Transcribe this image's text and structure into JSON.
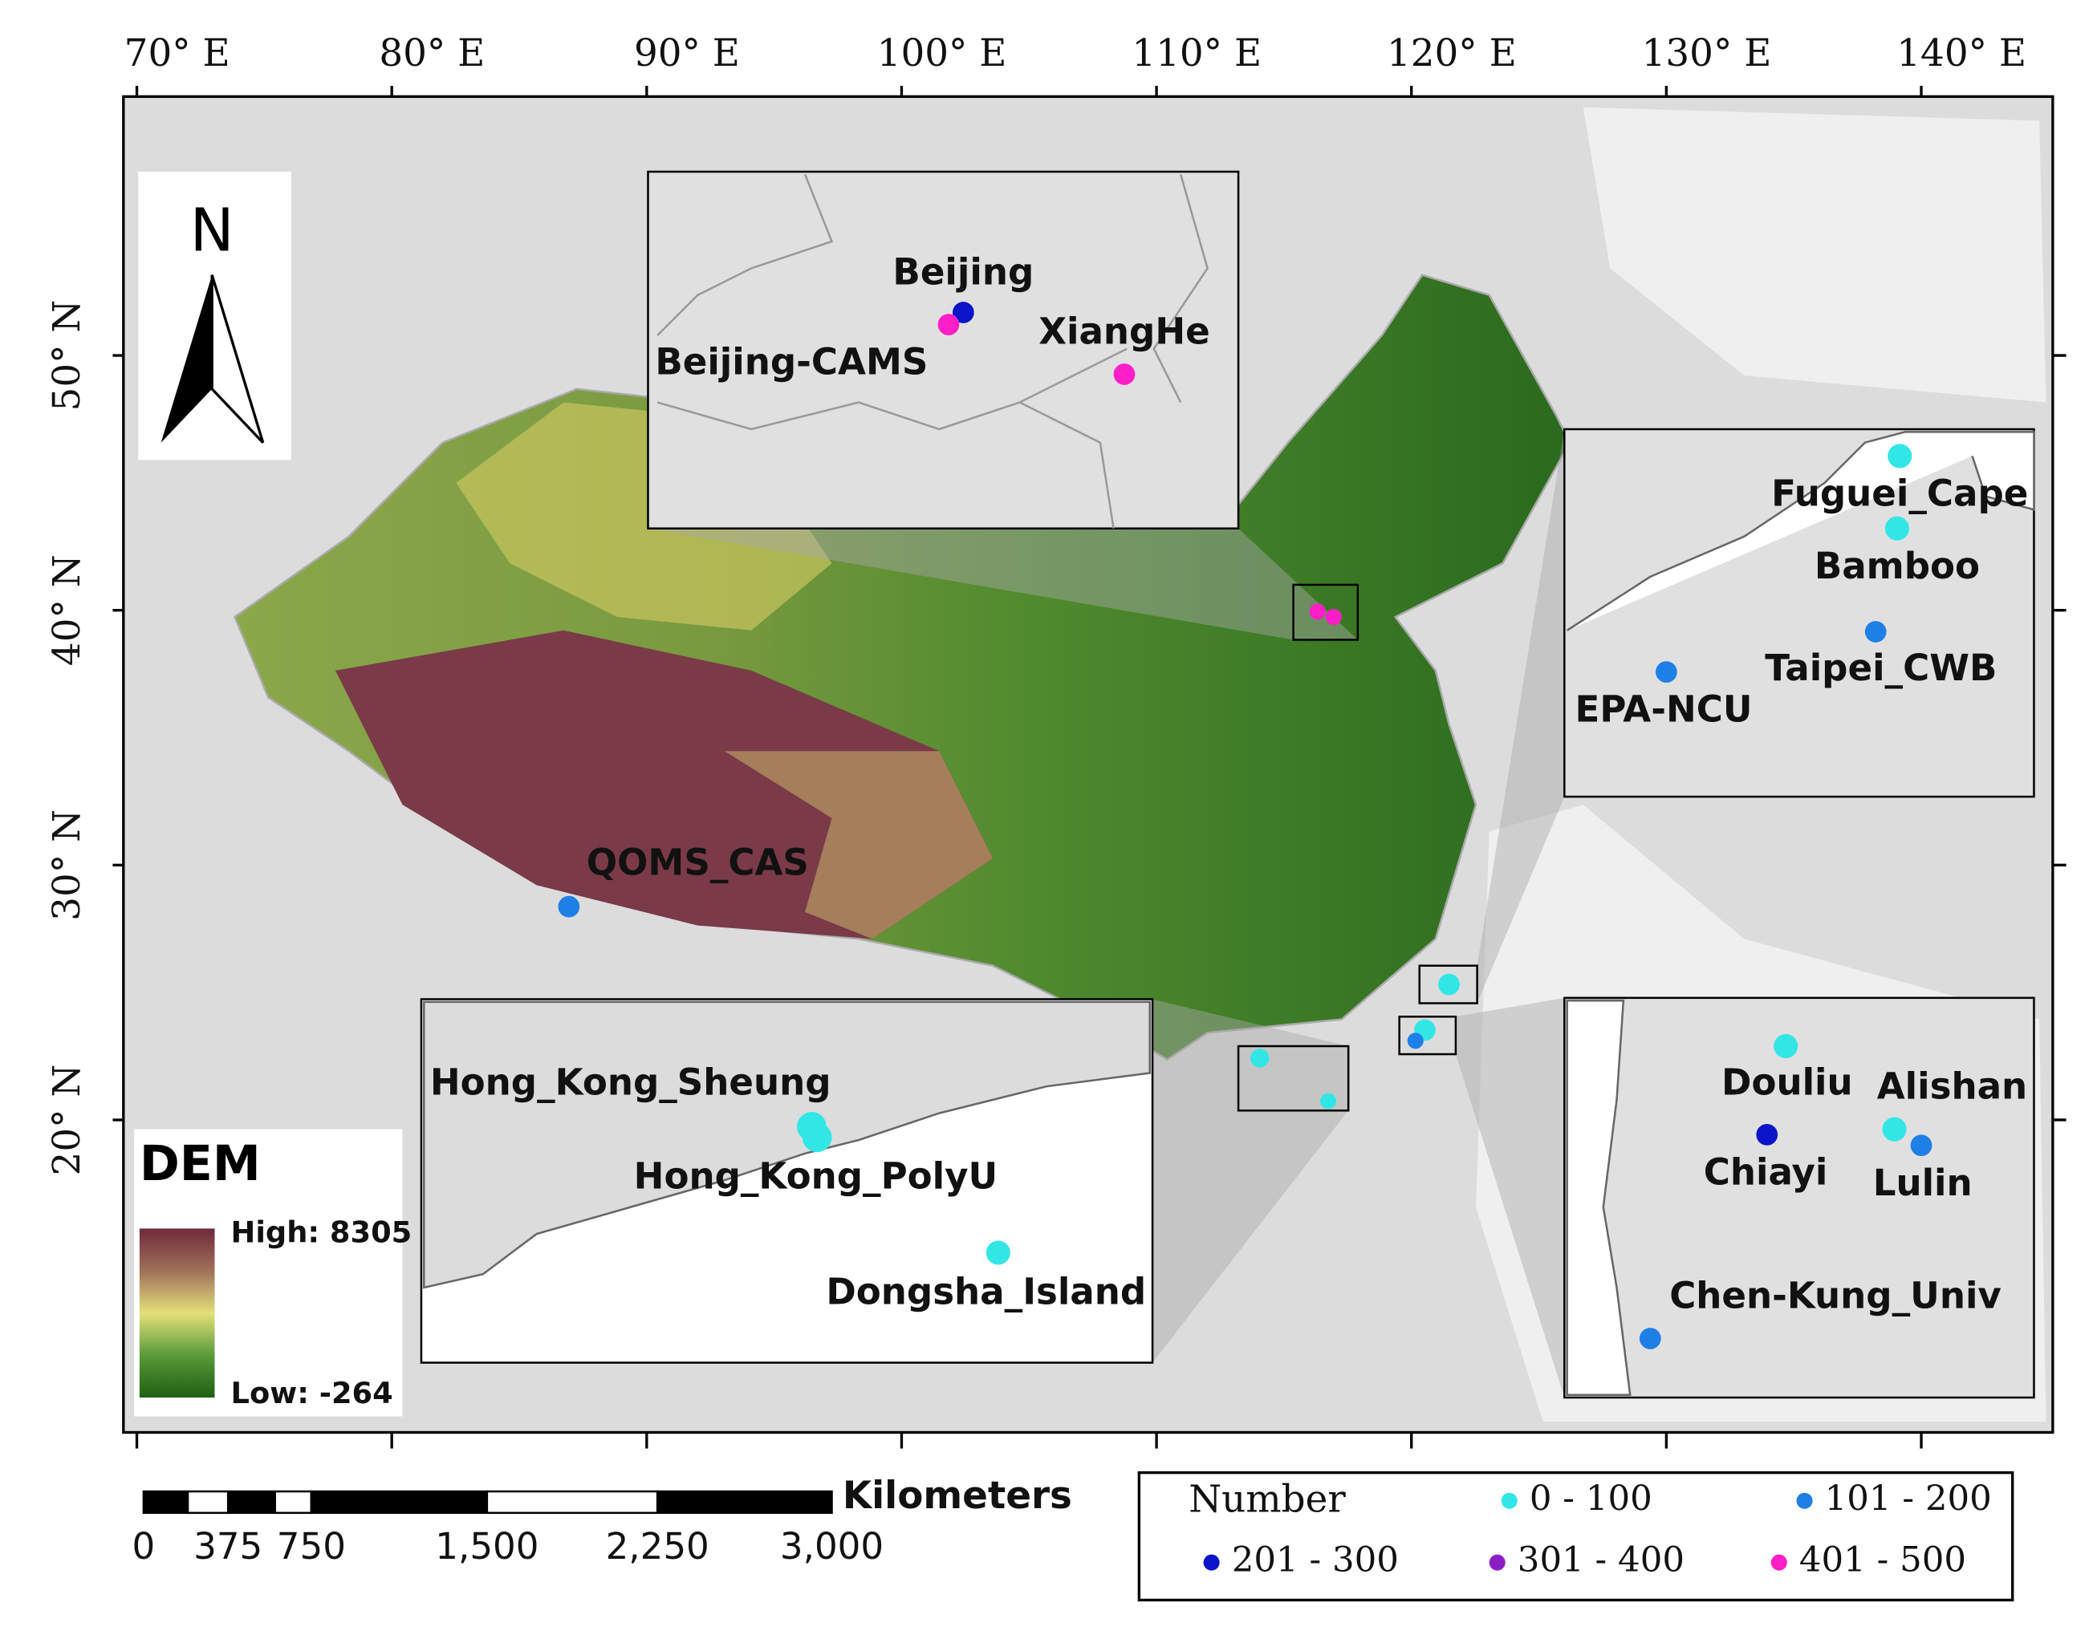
{
  "map": {
    "top_axis_labels": [
      "70° E",
      "80° E",
      "90° E",
      "100° E",
      "110° E",
      "120° E",
      "130° E",
      "140° E"
    ],
    "left_axis_labels": [
      "50° N",
      "40° N",
      "30° N",
      "20° N"
    ],
    "north_arrow": "N",
    "dem_legend": {
      "title": "DEM",
      "high": "High: 8305",
      "low": "Low: -264"
    },
    "scale_bar": {
      "unit": "Kilometers",
      "labels": [
        "0",
        "375",
        "750",
        "1,500",
        "2,250",
        "3,000"
      ]
    },
    "number_legend": {
      "title": "Number",
      "classes": [
        {
          "label": "0 - 100",
          "color": "#33e6e6"
        },
        {
          "label": "101 - 200",
          "color": "#1e7fe6"
        },
        {
          "label": "201 - 300",
          "color": "#0a14c8"
        },
        {
          "label": "301 - 400",
          "color": "#8c1ec8"
        },
        {
          "label": "401 - 500",
          "color": "#ff1ec8"
        }
      ]
    },
    "stations": [
      {
        "label": "QOMS_CAS",
        "color": "#1e7fe6"
      },
      {
        "label": "Beijing",
        "color": "#0a14c8"
      },
      {
        "label": "Beijing-CAMS",
        "color": "#ff1ec8"
      },
      {
        "label": "XiangHe",
        "color": "#ff1ec8"
      },
      {
        "label": "Fuguei_Cape",
        "color": "#33e6e6"
      },
      {
        "label": "Bamboo",
        "color": "#33e6e6"
      },
      {
        "label": "Taipei_CWB",
        "color": "#1e7fe6"
      },
      {
        "label": "EPA-NCU",
        "color": "#1e7fe6"
      },
      {
        "label": "Douliu",
        "color": "#33e6e6"
      },
      {
        "label": "Alishan",
        "color": "#33e6e6"
      },
      {
        "label": "Chiayi",
        "color": "#0a14c8"
      },
      {
        "label": "Lulin",
        "color": "#1e7fe6"
      },
      {
        "label": "Chen-Kung_Univ",
        "color": "#1e7fe6"
      },
      {
        "label": "Hong_Kong_Sheung",
        "color": "#33e6e6"
      },
      {
        "label": "Hong_Kong_PolyU",
        "color": "#33e6e6"
      },
      {
        "label": "Dongsha_Island",
        "color": "#33e6e6"
      }
    ]
  }
}
